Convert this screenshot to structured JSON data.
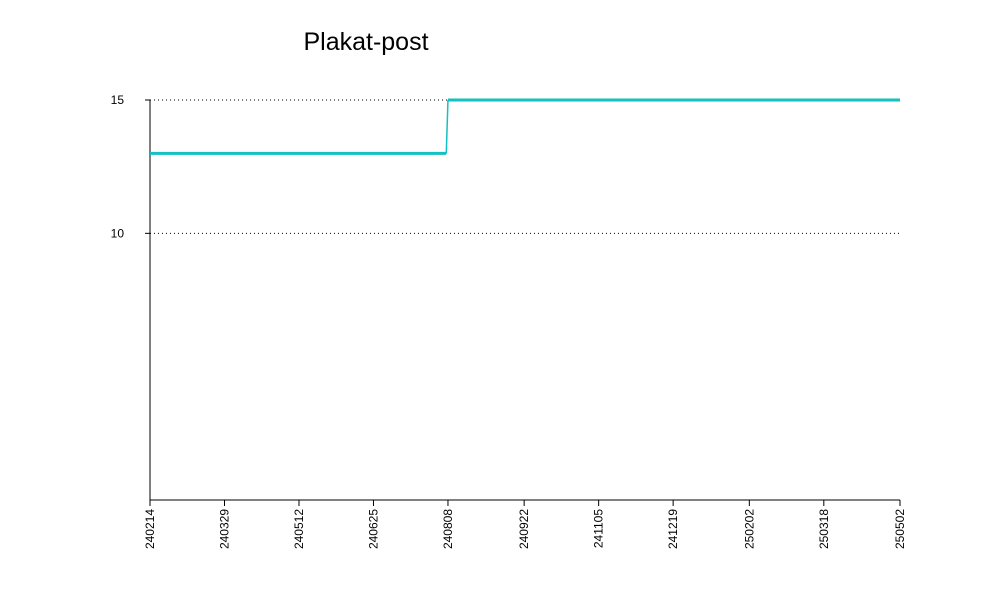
{
  "chart_data": {
    "type": "line",
    "step": true,
    "title": "Plakat-post",
    "xlabel": "",
    "ylabel": "",
    "x_tick_labels": [
      "240214",
      "240329",
      "240512",
      "240625",
      "240808",
      "240922",
      "241105",
      "241219",
      "250202",
      "250318",
      "250502"
    ],
    "y_ticks": [
      10,
      15
    ],
    "ylim": [
      0,
      15
    ],
    "grid": "horizontal-dotted",
    "legend": "none",
    "series": [
      {
        "color": "#13c0c3",
        "x": [
          "240214",
          "240807",
          "240808",
          "250502"
        ],
        "values": [
          13,
          13,
          15,
          15
        ]
      }
    ]
  }
}
